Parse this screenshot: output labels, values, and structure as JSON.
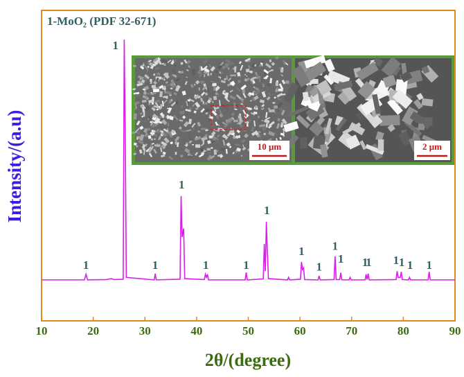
{
  "chart_data": {
    "type": "line",
    "title": "1-MoO₂ (PDF 32-671)",
    "xlabel": "2θ/(degree)",
    "ylabel": "Intensity/(a.u)",
    "xlim": [
      10,
      90
    ],
    "xticks": [
      10,
      20,
      30,
      40,
      50,
      60,
      70,
      80,
      90
    ],
    "ylim": [
      0,
      100
    ],
    "x": [
      10,
      18.3,
      18.6,
      18.9,
      22.5,
      23.5,
      24,
      25.8,
      26.0,
      26.2,
      26.4,
      31.8,
      32.0,
      32.2,
      36.8,
      37.0,
      37.2,
      37.5,
      37.7,
      41.5,
      41.7,
      41.9,
      42.1,
      42.3,
      49.4,
      49.6,
      49.8,
      52.9,
      53.1,
      53.3,
      53.5,
      53.7,
      53.9,
      57.6,
      57.8,
      58,
      60.1,
      60.3,
      60.5,
      60.7,
      60.9,
      63.5,
      63.7,
      63.9,
      66.6,
      66.8,
      67,
      67.7,
      67.9,
      68.1,
      69.5,
      69.7,
      69.9,
      72.6,
      72.8,
      73,
      73.2,
      73.4,
      78.6,
      78.8,
      79,
      79.4,
      79.6,
      79.8,
      81,
      81.2,
      81.4,
      84.8,
      85,
      85.2,
      90
    ],
    "series": [
      {
        "color": "#d81ee8",
        "values": [
          13.2,
          13.2,
          15.0,
          13.2,
          13.3,
          13.6,
          13.3,
          13.4,
          90.6,
          60,
          14,
          13.2,
          15.2,
          13.2,
          13.4,
          40.2,
          27,
          29.7,
          13.6,
          13.3,
          15,
          14,
          15,
          13.2,
          13.2,
          15.6,
          13.2,
          13.5,
          24.8,
          16,
          31.9,
          22,
          13.6,
          13.2,
          14,
          13.2,
          13.4,
          19,
          16.5,
          17,
          13.3,
          13.2,
          14.5,
          13.2,
          13.3,
          20.8,
          13.3,
          13.3,
          15.5,
          13.2,
          13.2,
          14,
          13.2,
          13.2,
          15,
          13.3,
          15.2,
          13.2,
          13.3,
          16,
          14,
          14,
          15.8,
          13.3,
          13.2,
          14,
          13.2,
          13.2,
          15.8,
          13.2,
          13.2
        ]
      }
    ],
    "annotations": [
      {
        "text": "1",
        "x": 18.6,
        "y": 17.6
      },
      {
        "text": "1",
        "x": 24.3,
        "y": 88.4
      },
      {
        "text": "1",
        "x": 32.0,
        "y": 17.6
      },
      {
        "text": "1",
        "x": 37.1,
        "y": 43.5
      },
      {
        "text": "1",
        "x": 41.8,
        "y": 17.6
      },
      {
        "text": "1",
        "x": 49.6,
        "y": 17.6
      },
      {
        "text": "1",
        "x": 53.6,
        "y": 35.3
      },
      {
        "text": "1",
        "x": 60.3,
        "y": 22.1
      },
      {
        "text": "1",
        "x": 63.7,
        "y": 17.0
      },
      {
        "text": "1",
        "x": 66.8,
        "y": 23.7
      },
      {
        "text": "1",
        "x": 67.9,
        "y": 19.6
      },
      {
        "text": "1",
        "x": 72.6,
        "y": 18.5
      },
      {
        "text": "1",
        "x": 73.3,
        "y": 18.5
      },
      {
        "text": "1",
        "x": 78.6,
        "y": 19.2
      },
      {
        "text": "1",
        "x": 79.7,
        "y": 18.5
      },
      {
        "text": "1",
        "x": 81.3,
        "y": 17.6
      },
      {
        "text": "1",
        "x": 85.0,
        "y": 17.6
      }
    ],
    "inset": {
      "scale_bars": [
        "10 μm",
        "2 μm"
      ]
    }
  }
}
